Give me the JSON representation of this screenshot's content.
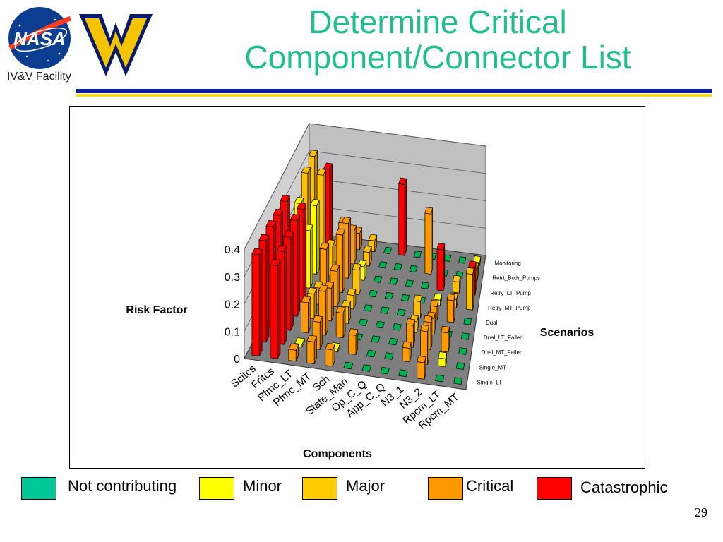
{
  "header": {
    "title_line1": "Determine Critical",
    "title_line2": "Component/Connector List",
    "facility_label": "IV&V Facility",
    "nasa_logo_text": "NASA"
  },
  "colors": {
    "title": "#1fbf8a",
    "rule_blue": "#0a1aa8",
    "rule_yellow": "#f2e000"
  },
  "chart_data": {
    "type": "bar",
    "subtype": "3d-bar",
    "zlabel": "Risk Factor",
    "xlabel": "Components",
    "ylabel": "Scenarios",
    "zlim": [
      0,
      0.4
    ],
    "z_ticks": [
      "0",
      "0.1",
      "0.2",
      "0.3",
      "0.4"
    ],
    "components": [
      "Scitcs",
      "Fritcs",
      "Pfmc_LT",
      "Pfmc_MT",
      "Sch",
      "State_Man",
      "Op_C_Q",
      "App_C_Q",
      "N3_1",
      "N3_2",
      "Rpcm_LT",
      "Rpcm_MT"
    ],
    "scenarios": [
      "Single_LT",
      "Single_MT",
      "Dual_MT_Failed",
      "Dual_LT_Failed",
      "Dual",
      "Retry_MT_Pump",
      "Retry_LT_Pump",
      "Retrt_Both_Pumps",
      "Monitoring"
    ],
    "series_colors": {
      "Not contributing": "#00b050",
      "Minor": "#ffff00",
      "Major": "#ffc000",
      "Critical": "#ff9900",
      "Catastrophic": "#ff0000"
    },
    "values": [
      [
        0.37,
        0.34,
        0.04,
        0.08,
        0.06,
        0.01,
        0.01,
        0.01,
        0.01,
        0.06,
        0.01,
        0.01
      ],
      [
        0.37,
        0.34,
        0.01,
        0.1,
        0.01,
        0.07,
        0.01,
        0.01,
        0.05,
        0.12,
        0.03,
        0.01
      ],
      [
        0.37,
        0.34,
        0.11,
        0.16,
        0.09,
        0.01,
        0.01,
        0.01,
        0.08,
        0.1,
        0.07,
        0.01
      ],
      [
        0.36,
        0.35,
        0.09,
        0.12,
        0.06,
        0.01,
        0.01,
        0.01,
        0.04,
        0.06,
        0.01,
        0.01
      ],
      [
        0.36,
        0.34,
        0.06,
        0.13,
        0.05,
        0.01,
        0.01,
        0.01,
        0.06,
        0.05,
        0.08,
        0.01
      ],
      [
        0.23,
        0.21,
        0.15,
        0.21,
        0.09,
        0.01,
        0.01,
        0.01,
        0.01,
        0.02,
        0.03,
        0.13
      ],
      [
        0.25,
        0.25,
        0.11,
        0.2,
        0.05,
        0.01,
        0.01,
        0.01,
        0.01,
        0.15,
        0.04,
        0.1
      ],
      [
        0.31,
        0.31,
        0.06,
        0.12,
        0.05,
        0.01,
        0.01,
        0.01,
        0.22,
        0.01,
        0.01,
        0.04
      ],
      [
        0.32,
        0.28,
        0.09,
        0.06,
        0.04,
        0.01,
        0.26,
        0.01,
        0.01,
        0.01,
        0.01,
        0.01
      ]
    ],
    "categories_map": [
      [
        "Catastrophic",
        "Catastrophic",
        "Critical",
        "Critical",
        "Critical",
        "Not contributing",
        "Not contributing",
        "Not contributing",
        "Not contributing",
        "Critical",
        "Not contributing",
        "Not contributing"
      ],
      [
        "Catastrophic",
        "Catastrophic",
        "Minor",
        "Critical",
        "Minor",
        "Critical",
        "Not contributing",
        "Not contributing",
        "Critical",
        "Critical",
        "Minor",
        "Not contributing"
      ],
      [
        "Catastrophic",
        "Catastrophic",
        "Critical",
        "Critical",
        "Critical",
        "Not contributing",
        "Not contributing",
        "Not contributing",
        "Critical",
        "Critical",
        "Critical",
        "Not contributing"
      ],
      [
        "Catastrophic",
        "Catastrophic",
        "Major",
        "Critical",
        "Major",
        "Not contributing",
        "Not contributing",
        "Not contributing",
        "Major",
        "Critical",
        "Not contributing",
        "Not contributing"
      ],
      [
        "Catastrophic",
        "Catastrophic",
        "Major",
        "Critical",
        "Major",
        "Not contributing",
        "Not contributing",
        "Not contributing",
        "Major",
        "Critical",
        "Critical",
        "Not contributing"
      ],
      [
        "Minor",
        "Minor",
        "Critical",
        "Critical",
        "Major",
        "Not contributing",
        "Not contributing",
        "Not contributing",
        "Not contributing",
        "Minor",
        "Major",
        "Major"
      ],
      [
        "Minor",
        "Minor",
        "Major",
        "Critical",
        "Minor",
        "Not contributing",
        "Not contributing",
        "Not contributing",
        "Not contributing",
        "Catastrophic",
        "Major",
        "Catastrophic"
      ],
      [
        "Major",
        "Major",
        "Major",
        "Critical",
        "Major",
        "Not contributing",
        "Not contributing",
        "Not contributing",
        "Critical",
        "Not contributing",
        "Not contributing",
        "Major"
      ],
      [
        "Major",
        "Catastrophic",
        "Critical",
        "Critical",
        "Major",
        "Not contributing",
        "Catastrophic",
        "Not contributing",
        "Not contributing",
        "Not contributing",
        "Not contributing",
        "Minor"
      ]
    ]
  },
  "legend": [
    {
      "label": "Not contributing",
      "color": "#00c896"
    },
    {
      "label": "Minor",
      "color": "#ffff00"
    },
    {
      "label": "Major",
      "color": "#ffcc00"
    },
    {
      "label": "Critical",
      "color": "#ff9900"
    },
    {
      "label": "Catastrophic",
      "color": "#ff0000"
    }
  ],
  "footer": {
    "page_number": "29"
  }
}
